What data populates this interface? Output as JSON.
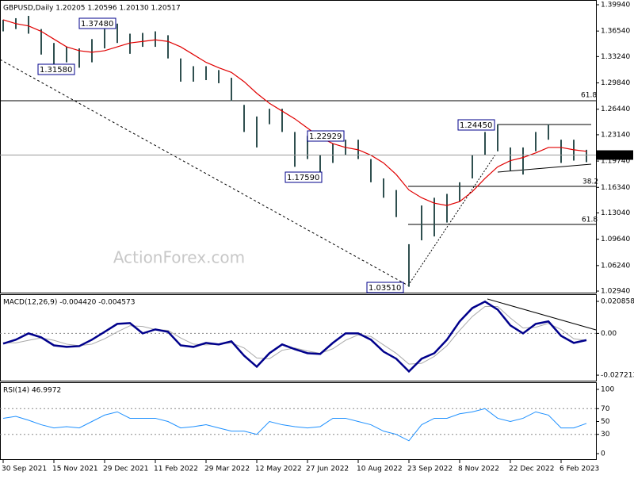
{
  "chart_data": [
    {
      "type": "ohlc",
      "title": "GBPUSD,Daily  1.20205 1.20596 1.20130 1.20517",
      "watermark": "ActionForex.com",
      "categories": [
        "30 Sep 2021",
        null,
        null,
        null,
        "15 Nov 2021",
        null,
        null,
        null,
        "29 Dec 2021",
        null,
        null,
        null,
        "11 Feb 2022",
        null,
        null,
        null,
        "29 Mar 2022",
        null,
        null,
        null,
        "12 May 2022",
        null,
        null,
        null,
        "27 Jun 2022",
        null,
        null,
        null,
        "10 Aug 2022",
        null,
        null,
        null,
        "23 Sep 2022",
        null,
        null,
        null,
        "8 Nov 2022",
        null,
        null,
        null,
        "22 Dec 2022",
        null,
        null,
        null,
        "6 Feb 2023",
        null,
        null
      ],
      "series": [
        {
          "color": "#2f4f4f",
          "high": [
            1.38,
            1.382,
            1.385,
            1.368,
            1.35,
            1.345,
            1.343,
            1.355,
            1.368,
            1.375,
            1.362,
            1.363,
            1.365,
            1.36,
            1.33,
            1.32,
            1.32,
            1.315,
            1.305,
            1.27,
            1.255,
            1.265,
            1.265,
            1.235,
            1.23,
            1.205,
            1.22,
            1.225,
            1.225,
            1.2,
            1.175,
            1.16,
            1.09,
            1.14,
            1.15,
            1.155,
            1.17,
            1.205,
            1.235,
            1.245,
            1.215,
            1.215,
            1.235,
            1.245,
            1.225,
            1.225,
            1.212
          ],
          "low": [
            1.365,
            1.368,
            1.362,
            1.335,
            1.322,
            1.325,
            1.318,
            1.325,
            1.343,
            1.35,
            1.336,
            1.345,
            1.345,
            1.33,
            1.3,
            1.3,
            1.302,
            1.298,
            1.275,
            1.235,
            1.215,
            1.245,
            1.235,
            1.19,
            1.2,
            1.176,
            1.195,
            1.205,
            1.2,
            1.17,
            1.15,
            1.125,
            1.035,
            1.095,
            1.1,
            1.118,
            1.145,
            1.175,
            1.205,
            1.21,
            1.185,
            1.18,
            1.21,
            1.225,
            1.195,
            1.198,
            1.196
          ]
        },
        {
          "color": "#e00000",
          "values": [
            1.38,
            1.375,
            1.372,
            1.365,
            1.355,
            1.345,
            1.34,
            1.338,
            1.34,
            1.345,
            1.35,
            1.352,
            1.354,
            1.352,
            1.345,
            1.335,
            1.325,
            1.318,
            1.312,
            1.3,
            1.285,
            1.272,
            1.262,
            1.252,
            1.24,
            1.228,
            1.22,
            1.215,
            1.212,
            1.205,
            1.195,
            1.18,
            1.16,
            1.15,
            1.143,
            1.14,
            1.145,
            1.158,
            1.175,
            1.19,
            1.198,
            1.202,
            1.208,
            1.215,
            1.215,
            1.212,
            1.21
          ]
        }
      ],
      "last_price": {
        "value": 1.20517,
        "label": "1.20517"
      },
      "annotations": [
        "1.37480",
        "1.31580",
        "1.22929",
        "1.17590",
        "1.24450",
        "1.03510"
      ],
      "fib_labels": [
        "61.8",
        "38.2",
        "61.8"
      ],
      "ylim": [
        1.0274,
        1.4045
      ],
      "yticks": [
        {
          "value": 1.3994,
          "label": "1.39940"
        },
        {
          "value": 1.3654,
          "label": "1.36540"
        },
        {
          "value": 1.3324,
          "label": "1.33240"
        },
        {
          "value": 1.2984,
          "label": "1.29840"
        },
        {
          "value": 1.2644,
          "label": "1.26440"
        },
        {
          "value": 1.2314,
          "label": "1.23140"
        },
        {
          "value": 1.1974,
          "label": "1.19740"
        },
        {
          "value": 1.1634,
          "label": "1.16340"
        },
        {
          "value": 1.1304,
          "label": "1.13040"
        },
        {
          "value": 1.0964,
          "label": "1.09640"
        },
        {
          "value": 1.0624,
          "label": "1.06240"
        },
        {
          "value": 1.0294,
          "label": "1.02940"
        }
      ]
    },
    {
      "type": "line",
      "title": "MACD(12,26,9) -0.004420 -0.004573",
      "series": [
        {
          "color": "#00008b",
          "values": [
            -0.0067,
            -0.0041,
            0.0,
            -0.0026,
            -0.0078,
            -0.0088,
            -0.0083,
            -0.0041,
            0.001,
            0.0062,
            0.0067,
            0.0,
            0.0026,
            0.001,
            -0.0078,
            -0.0088,
            -0.0062,
            -0.0072,
            -0.0052,
            -0.0145,
            -0.0217,
            -0.0129,
            -0.0072,
            -0.0103,
            -0.0129,
            -0.0134,
            -0.0062,
            0.0,
            0.0,
            -0.0041,
            -0.0119,
            -0.0165,
            -0.0248,
            -0.0165,
            -0.0129,
            -0.0041,
            0.0078,
            0.0165,
            0.0207,
            0.0155,
            0.0052,
            0.0,
            0.0062,
            0.0078,
            -0.0016,
            -0.0062,
            -0.0044
          ]
        },
        {
          "color": "#a9a9a9",
          "values": [
            -0.006,
            -0.0062,
            -0.0045,
            -0.003,
            -0.0045,
            -0.007,
            -0.008,
            -0.007,
            -0.0035,
            0.001,
            0.005,
            0.0045,
            0.0025,
            0.002,
            -0.003,
            -0.007,
            -0.0075,
            -0.007,
            -0.0062,
            -0.0095,
            -0.016,
            -0.0165,
            -0.011,
            -0.0095,
            -0.0115,
            -0.013,
            -0.01,
            -0.0045,
            -0.001,
            -0.002,
            -0.0075,
            -0.013,
            -0.02,
            -0.0195,
            -0.015,
            -0.008,
            0.002,
            0.011,
            0.0175,
            0.0175,
            0.01,
            0.0035,
            0.004,
            0.0065,
            0.0025,
            -0.0035,
            -0.0046
          ]
        }
      ],
      "ylim": [
        -0.0308,
        0.025
      ],
      "yticks": [
        0.020858,
        {
          "value": 0,
          "label": "0.00"
        },
        -0.027213
      ]
    },
    {
      "type": "line",
      "title": "RSI(14) 46.9972",
      "series": [
        {
          "color": "#1e90ff",
          "values": [
            55,
            58,
            52,
            45,
            40,
            42,
            40,
            50,
            60,
            65,
            55,
            55,
            55,
            50,
            40,
            42,
            45,
            40,
            35,
            35,
            30,
            50,
            45,
            42,
            40,
            42,
            55,
            55,
            50,
            45,
            35,
            30,
            20,
            45,
            55,
            55,
            62,
            65,
            70,
            55,
            50,
            55,
            65,
            60,
            40,
            40,
            47
          ]
        }
      ],
      "ylim": [
        0,
        100
      ],
      "yticks": [
        100,
        70,
        50,
        30,
        0
      ]
    }
  ]
}
